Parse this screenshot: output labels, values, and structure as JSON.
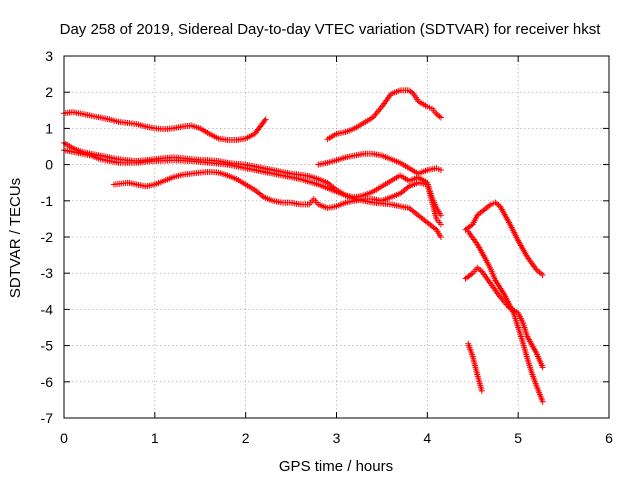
{
  "chart_data": {
    "type": "scatter",
    "title": "Day 258 of 2019, Sidereal Day-to-day VTEC variation (SDTVAR) for receiver hkst",
    "xlabel": "GPS time / hours",
    "ylabel": "SDTVAR / TECUs",
    "xlim": [
      0,
      6
    ],
    "ylim": [
      -7,
      3
    ],
    "xticks": [
      "0",
      "1",
      "2",
      "3",
      "4",
      "5",
      "6"
    ],
    "yticks": [
      "3",
      "2",
      "1",
      "0",
      "-1",
      "-2",
      "-3",
      "-4",
      "-5",
      "-6",
      "-7"
    ],
    "grid": true,
    "marker": "+",
    "color": "#ff0000",
    "series": [
      {
        "name": "track-1",
        "points": [
          [
            0.0,
            1.42
          ],
          [
            0.1,
            1.45
          ],
          [
            0.2,
            1.4
          ],
          [
            0.3,
            1.35
          ],
          [
            0.4,
            1.3
          ],
          [
            0.5,
            1.25
          ],
          [
            0.6,
            1.18
          ],
          [
            0.7,
            1.15
          ],
          [
            0.8,
            1.12
          ],
          [
            0.9,
            1.05
          ],
          [
            1.0,
            1.0
          ],
          [
            1.1,
            0.98
          ],
          [
            1.2,
            1.0
          ],
          [
            1.3,
            1.05
          ],
          [
            1.4,
            1.08
          ],
          [
            1.5,
            1.0
          ],
          [
            1.6,
            0.85
          ],
          [
            1.7,
            0.72
          ],
          [
            1.8,
            0.68
          ],
          [
            1.9,
            0.68
          ],
          [
            2.0,
            0.72
          ],
          [
            2.1,
            0.85
          ],
          [
            2.22,
            1.25
          ]
        ]
      },
      {
        "name": "track-2",
        "points": [
          [
            0.0,
            0.6
          ],
          [
            0.1,
            0.45
          ],
          [
            0.2,
            0.35
          ],
          [
            0.3,
            0.3
          ],
          [
            0.4,
            0.25
          ],
          [
            0.5,
            0.2
          ],
          [
            0.6,
            0.15
          ],
          [
            0.7,
            0.12
          ],
          [
            0.8,
            0.1
          ],
          [
            0.9,
            0.12
          ],
          [
            1.0,
            0.15
          ],
          [
            1.1,
            0.18
          ],
          [
            1.2,
            0.2
          ],
          [
            1.3,
            0.18
          ],
          [
            1.4,
            0.15
          ],
          [
            1.5,
            0.13
          ],
          [
            1.6,
            0.12
          ],
          [
            1.7,
            0.1
          ],
          [
            1.8,
            0.05
          ],
          [
            1.9,
            0.02
          ],
          [
            2.0,
            0.0
          ],
          [
            2.1,
            -0.05
          ],
          [
            2.2,
            -0.1
          ],
          [
            2.3,
            -0.15
          ],
          [
            2.4,
            -0.2
          ],
          [
            2.5,
            -0.25
          ],
          [
            2.6,
            -0.28
          ],
          [
            2.7,
            -0.32
          ],
          [
            2.8,
            -0.4
          ],
          [
            2.9,
            -0.5
          ],
          [
            3.0,
            -0.7
          ],
          [
            3.1,
            -0.85
          ],
          [
            3.2,
            -0.9
          ],
          [
            3.3,
            -0.85
          ],
          [
            3.4,
            -0.75
          ],
          [
            3.5,
            -0.6
          ],
          [
            3.6,
            -0.45
          ],
          [
            3.7,
            -0.3
          ],
          [
            3.8,
            -0.45
          ],
          [
            3.9,
            -0.35
          ],
          [
            4.0,
            -0.5
          ],
          [
            4.05,
            -0.9
          ],
          [
            4.1,
            -1.2
          ],
          [
            4.15,
            -1.4
          ]
        ]
      },
      {
        "name": "track-3",
        "points": [
          [
            0.0,
            0.4
          ],
          [
            0.1,
            0.35
          ],
          [
            0.2,
            0.3
          ],
          [
            0.3,
            0.25
          ],
          [
            0.4,
            0.15
          ],
          [
            0.5,
            0.1
          ],
          [
            0.6,
            0.05
          ],
          [
            0.7,
            0.05
          ],
          [
            0.8,
            0.05
          ],
          [
            0.9,
            0.08
          ],
          [
            1.0,
            0.1
          ],
          [
            1.2,
            0.12
          ],
          [
            1.4,
            0.1
          ],
          [
            1.6,
            0.05
          ],
          [
            1.8,
            0.0
          ],
          [
            2.0,
            -0.1
          ],
          [
            2.2,
            -0.2
          ],
          [
            2.4,
            -0.3
          ],
          [
            2.6,
            -0.4
          ],
          [
            2.8,
            -0.55
          ],
          [
            3.0,
            -0.75
          ],
          [
            3.2,
            -0.95
          ],
          [
            3.4,
            -1.05
          ],
          [
            3.6,
            -1.1
          ],
          [
            3.8,
            -1.2
          ],
          [
            3.9,
            -1.4
          ],
          [
            4.0,
            -1.6
          ],
          [
            4.1,
            -1.8
          ],
          [
            4.15,
            -2.0
          ]
        ]
      },
      {
        "name": "track-4",
        "points": [
          [
            0.55,
            -0.55
          ],
          [
            0.7,
            -0.5
          ],
          [
            0.8,
            -0.55
          ],
          [
            0.9,
            -0.6
          ],
          [
            1.0,
            -0.55
          ],
          [
            1.1,
            -0.45
          ],
          [
            1.2,
            -0.35
          ],
          [
            1.3,
            -0.28
          ],
          [
            1.4,
            -0.25
          ],
          [
            1.5,
            -0.22
          ],
          [
            1.6,
            -0.2
          ],
          [
            1.7,
            -0.22
          ],
          [
            1.8,
            -0.3
          ],
          [
            1.9,
            -0.4
          ],
          [
            2.0,
            -0.55
          ],
          [
            2.1,
            -0.7
          ],
          [
            2.2,
            -0.9
          ],
          [
            2.3,
            -1.0
          ],
          [
            2.4,
            -1.05
          ],
          [
            2.5,
            -1.05
          ],
          [
            2.6,
            -1.1
          ],
          [
            2.7,
            -1.1
          ],
          [
            2.75,
            -0.95
          ],
          [
            2.8,
            -1.1
          ],
          [
            2.9,
            -1.2
          ],
          [
            3.0,
            -1.15
          ],
          [
            3.1,
            -1.05
          ],
          [
            3.2,
            -1.0
          ],
          [
            3.3,
            -0.95
          ],
          [
            3.4,
            -0.95
          ],
          [
            3.5,
            -1.0
          ],
          [
            3.6,
            -0.9
          ],
          [
            3.7,
            -0.8
          ],
          [
            3.8,
            -0.6
          ],
          [
            3.9,
            -0.5
          ],
          [
            4.0,
            -0.55
          ],
          [
            4.05,
            -1.0
          ],
          [
            4.1,
            -1.5
          ],
          [
            4.15,
            -1.65
          ]
        ]
      },
      {
        "name": "track-5",
        "points": [
          [
            2.8,
            0.0
          ],
          [
            2.9,
            0.05
          ],
          [
            3.0,
            0.12
          ],
          [
            3.1,
            0.2
          ],
          [
            3.2,
            0.25
          ],
          [
            3.3,
            0.3
          ],
          [
            3.4,
            0.3
          ],
          [
            3.5,
            0.25
          ],
          [
            3.6,
            0.15
          ],
          [
            3.7,
            0.05
          ],
          [
            3.8,
            -0.1
          ],
          [
            3.9,
            -0.25
          ],
          [
            4.0,
            -0.15
          ],
          [
            4.1,
            -0.1
          ],
          [
            4.15,
            -0.15
          ]
        ]
      },
      {
        "name": "track-6",
        "points": [
          [
            2.9,
            0.7
          ],
          [
            3.0,
            0.85
          ],
          [
            3.1,
            0.9
          ],
          [
            3.2,
            1.0
          ],
          [
            3.3,
            1.15
          ],
          [
            3.4,
            1.3
          ],
          [
            3.5,
            1.6
          ],
          [
            3.6,
            1.95
          ],
          [
            3.7,
            2.05
          ],
          [
            3.8,
            2.05
          ],
          [
            3.85,
            1.95
          ],
          [
            3.9,
            1.75
          ],
          [
            4.0,
            1.6
          ],
          [
            4.05,
            1.55
          ],
          [
            4.1,
            1.4
          ],
          [
            4.15,
            1.3
          ]
        ]
      },
      {
        "name": "track-7",
        "points": [
          [
            4.42,
            -1.8
          ],
          [
            4.5,
            -1.65
          ],
          [
            4.55,
            -1.4
          ],
          [
            4.6,
            -1.3
          ],
          [
            4.65,
            -1.2
          ],
          [
            4.7,
            -1.1
          ],
          [
            4.75,
            -1.05
          ],
          [
            4.8,
            -1.15
          ],
          [
            4.9,
            -1.6
          ],
          [
            5.0,
            -2.1
          ],
          [
            5.1,
            -2.55
          ],
          [
            5.2,
            -2.9
          ],
          [
            5.27,
            -3.05
          ]
        ]
      },
      {
        "name": "track-8",
        "points": [
          [
            4.42,
            -3.15
          ],
          [
            4.5,
            -3.0
          ],
          [
            4.55,
            -2.85
          ],
          [
            4.6,
            -2.95
          ],
          [
            4.7,
            -3.3
          ],
          [
            4.8,
            -3.65
          ],
          [
            4.9,
            -3.95
          ],
          [
            5.0,
            -4.1
          ],
          [
            5.05,
            -4.35
          ],
          [
            5.1,
            -4.75
          ],
          [
            5.2,
            -5.2
          ],
          [
            5.27,
            -5.6
          ]
        ]
      },
      {
        "name": "track-9",
        "points": [
          [
            4.45,
            -1.85
          ],
          [
            4.55,
            -2.2
          ],
          [
            4.65,
            -2.65
          ],
          [
            4.7,
            -2.9
          ],
          [
            4.75,
            -3.2
          ],
          [
            4.85,
            -3.6
          ],
          [
            4.95,
            -4.1
          ],
          [
            5.0,
            -4.5
          ],
          [
            5.05,
            -4.9
          ],
          [
            5.1,
            -5.35
          ],
          [
            5.15,
            -5.75
          ],
          [
            5.2,
            -6.1
          ],
          [
            5.27,
            -6.55
          ]
        ]
      },
      {
        "name": "track-10",
        "points": [
          [
            4.45,
            -4.95
          ],
          [
            4.5,
            -5.3
          ],
          [
            4.55,
            -5.8
          ],
          [
            4.6,
            -6.25
          ]
        ]
      }
    ]
  }
}
